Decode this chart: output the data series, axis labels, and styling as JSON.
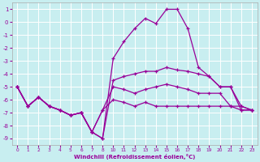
{
  "xlabel": "Windchill (Refroidissement éolien,°C)",
  "background_color": "#c8eef0",
  "grid_color": "#ffffff",
  "line_color": "#990099",
  "xlim": [
    -0.5,
    22.5
  ],
  "ylim": [
    -9.5,
    1.5
  ],
  "xtick_positions": [
    0,
    1,
    2,
    3,
    4,
    5,
    6,
    7,
    8,
    9,
    10,
    11,
    12,
    13,
    14,
    15,
    16,
    17,
    18,
    19,
    20,
    21,
    22
  ],
  "xtick_labels": [
    "0",
    "1",
    "2",
    "3",
    "4",
    "5",
    "6",
    "7",
    "8",
    "10",
    "11",
    "12",
    "13",
    "14",
    "15",
    "16",
    "17",
    "18",
    "19",
    "20",
    "21",
    "22",
    "23"
  ],
  "yticks": [
    1,
    0,
    -1,
    -2,
    -3,
    -4,
    -5,
    -6,
    -7,
    -8,
    -9
  ],
  "series1": [
    [
      0,
      -5.0
    ],
    [
      1,
      -6.5
    ],
    [
      2,
      -5.8
    ],
    [
      3,
      -6.5
    ],
    [
      4,
      -6.8
    ],
    [
      5,
      -7.2
    ],
    [
      6,
      -7.0
    ],
    [
      7,
      -8.5
    ],
    [
      8,
      -9.0
    ],
    [
      9,
      -2.8
    ],
    [
      10,
      -1.5
    ],
    [
      11,
      -0.5
    ],
    [
      12,
      0.3
    ],
    [
      13,
      -0.1
    ],
    [
      14,
      1.0
    ],
    [
      15,
      1.0
    ],
    [
      16,
      -0.5
    ],
    [
      17,
      -3.5
    ],
    [
      18,
      -4.2
    ],
    [
      19,
      -5.0
    ],
    [
      20,
      -5.0
    ],
    [
      21,
      -6.5
    ],
    [
      22,
      -6.8
    ]
  ],
  "series2": [
    [
      0,
      -5.0
    ],
    [
      1,
      -6.5
    ],
    [
      2,
      -5.8
    ],
    [
      3,
      -6.5
    ],
    [
      4,
      -6.8
    ],
    [
      5,
      -7.2
    ],
    [
      6,
      -7.0
    ],
    [
      7,
      -8.5
    ],
    [
      8,
      -9.0
    ],
    [
      9,
      -4.5
    ],
    [
      10,
      -4.2
    ],
    [
      11,
      -4.0
    ],
    [
      12,
      -3.8
    ],
    [
      13,
      -3.8
    ],
    [
      14,
      -3.5
    ],
    [
      15,
      -3.7
    ],
    [
      16,
      -3.8
    ],
    [
      17,
      -4.0
    ],
    [
      18,
      -4.2
    ],
    [
      19,
      -5.0
    ],
    [
      20,
      -5.0
    ],
    [
      21,
      -6.8
    ],
    [
      22,
      -6.8
    ]
  ],
  "series3": [
    [
      0,
      -5.0
    ],
    [
      1,
      -6.5
    ],
    [
      2,
      -5.8
    ],
    [
      3,
      -6.5
    ],
    [
      4,
      -6.8
    ],
    [
      5,
      -7.2
    ],
    [
      6,
      -7.0
    ],
    [
      7,
      -8.5
    ],
    [
      8,
      -6.8
    ],
    [
      9,
      -5.0
    ],
    [
      10,
      -5.2
    ],
    [
      11,
      -5.5
    ],
    [
      12,
      -5.2
    ],
    [
      13,
      -5.0
    ],
    [
      14,
      -4.8
    ],
    [
      15,
      -5.0
    ],
    [
      16,
      -5.2
    ],
    [
      17,
      -5.5
    ],
    [
      18,
      -5.5
    ],
    [
      19,
      -5.5
    ],
    [
      20,
      -6.5
    ],
    [
      21,
      -6.5
    ],
    [
      22,
      -6.8
    ]
  ],
  "series4": [
    [
      0,
      -5.0
    ],
    [
      1,
      -6.5
    ],
    [
      2,
      -5.8
    ],
    [
      3,
      -6.5
    ],
    [
      4,
      -6.8
    ],
    [
      5,
      -7.2
    ],
    [
      6,
      -7.0
    ],
    [
      7,
      -8.5
    ],
    [
      8,
      -6.8
    ],
    [
      9,
      -6.0
    ],
    [
      10,
      -6.2
    ],
    [
      11,
      -6.5
    ],
    [
      12,
      -6.2
    ],
    [
      13,
      -6.5
    ],
    [
      14,
      -6.5
    ],
    [
      15,
      -6.5
    ],
    [
      16,
      -6.5
    ],
    [
      17,
      -6.5
    ],
    [
      18,
      -6.5
    ],
    [
      19,
      -6.5
    ],
    [
      20,
      -6.5
    ],
    [
      21,
      -6.8
    ],
    [
      22,
      -6.8
    ]
  ]
}
